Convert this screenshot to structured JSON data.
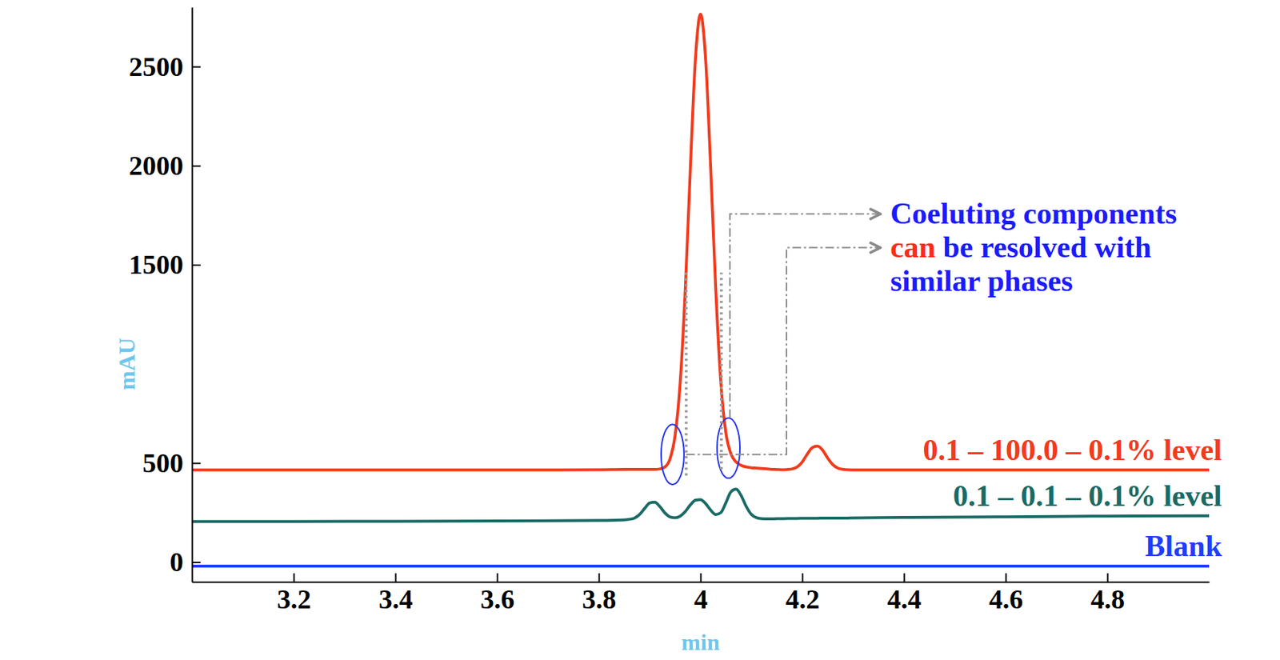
{
  "chart_data": {
    "type": "line",
    "xlabel": "min",
    "ylabel": "mAU",
    "x": [
      3.0,
      3.2,
      3.4,
      3.6,
      3.8,
      3.85,
      3.86,
      3.87,
      3.88,
      3.89,
      3.9,
      3.91,
      3.92,
      3.93,
      3.94,
      3.95,
      3.96,
      3.97,
      3.98,
      3.99,
      4.0,
      4.01,
      4.02,
      4.03,
      4.04,
      4.05,
      4.06,
      4.07,
      4.08,
      4.09,
      4.1,
      4.11,
      4.12,
      4.13,
      4.14,
      4.15,
      4.16,
      4.17,
      4.18,
      4.19,
      4.2,
      4.21,
      4.22,
      4.23,
      4.24,
      4.25,
      4.26,
      4.27,
      4.28,
      4.29,
      4.3,
      4.4,
      4.6,
      4.8,
      5.0
    ],
    "series": [
      {
        "name": "0.1 – 100.0 – 0.1% level",
        "color": "#f23a1c",
        "values": [
          465,
          465,
          465,
          465,
          466,
          468,
          468,
          468,
          468,
          468,
          468,
          468,
          470,
          480,
          521,
          639,
          905,
          1373,
          1987,
          2539,
          2765,
          2539,
          1987,
          1373,
          905,
          650,
          545,
          505,
          488,
          480,
          476,
          474,
          472,
          470,
          468,
          467,
          466,
          467,
          470,
          480,
          505,
          545,
          578,
          585,
          565,
          525,
          492,
          474,
          468,
          466,
          465,
          465,
          465,
          465,
          465
        ]
      },
      {
        "name": "0.1 – 0.1 – 0.1% level",
        "color": "#1a6a64",
        "values": [
          205,
          205,
          206,
          207,
          210,
          213,
          216,
          222,
          240,
          270,
          298,
          302,
          280,
          248,
          228,
          224,
          232,
          255,
          288,
          312,
          315,
          295,
          262,
          240,
          250,
          300,
          355,
          368,
          335,
          280,
          240,
          224,
          219,
          218,
          218,
          219,
          219,
          220,
          220,
          220,
          221,
          221,
          221,
          221,
          222,
          222,
          222,
          222,
          222,
          222,
          223,
          225,
          228,
          232,
          234
        ]
      },
      {
        "name": "Blank",
        "color": "#1f3dff",
        "values": [
          -20,
          -20,
          -20,
          -20,
          -20,
          -20,
          -20,
          -20,
          -20,
          -20,
          -20,
          -20,
          -20,
          -20,
          -20,
          -20,
          -20,
          -20,
          -20,
          -20,
          -20,
          -20,
          -20,
          -20,
          -20,
          -20,
          -20,
          -20,
          -20,
          -20,
          -20,
          -20,
          -20,
          -20,
          -20,
          -20,
          -20,
          -20,
          -20,
          -20,
          -20,
          -20,
          -20,
          -20,
          -20,
          -20,
          -20,
          -20,
          -20,
          -20,
          -20,
          -20,
          -20,
          -20,
          -20
        ]
      }
    ],
    "xlim": [
      3.0,
      5.0
    ],
    "ylim": [
      -100,
      2800
    ],
    "xticks": [
      3.2,
      3.4,
      3.6,
      3.8,
      4,
      4.2,
      4.4,
      4.6,
      4.8
    ],
    "yticks": [
      0,
      500,
      1500,
      2000,
      2500
    ],
    "grid": false,
    "annotations": [
      {
        "lines": [
          [
            {
              "text": "Coeluting components",
              "color": "#1a1aff"
            }
          ],
          [
            {
              "text": "can",
              "color": "#ff2a1a"
            },
            {
              "text": " be resolved with",
              "color": "#1a1aff"
            }
          ],
          [
            {
              "text": "similar phases",
              "color": "#1a1aff"
            }
          ]
        ],
        "points": [
          {
            "x": 3.945,
            "y": 543
          },
          {
            "x": 4.055,
            "y": 575
          }
        ]
      }
    ]
  }
}
